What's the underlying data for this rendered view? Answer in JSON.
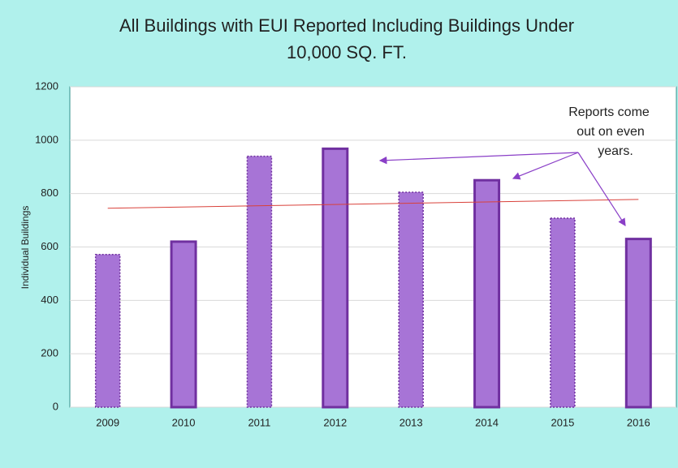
{
  "chart_data": {
    "type": "bar",
    "title": [
      "All Buildings with EUI Reported Including Buildings Under",
      "10,000 SQ. FT."
    ],
    "y_label": "Individual Buildings",
    "annotation": [
      "Reports come",
      "out on even",
      "years."
    ],
    "categories": [
      "2009",
      "2010",
      "2011",
      "2012",
      "2013",
      "2014",
      "2015",
      "2016"
    ],
    "values": [
      572,
      620,
      940,
      968,
      805,
      850,
      708,
      630
    ],
    "outline": [
      "dotted",
      "solid",
      "dotted",
      "solid",
      "dotted",
      "solid",
      "dotted",
      "solid"
    ],
    "color": "#a774d6",
    "outline_color": "#7030a0",
    "trend_line": [
      745,
      778
    ],
    "trend_color": "#d9413a",
    "ylim": [
      0,
      1200
    ],
    "yticks": [
      0,
      200,
      400,
      600,
      800,
      1000,
      1200
    ],
    "grid": true
  }
}
